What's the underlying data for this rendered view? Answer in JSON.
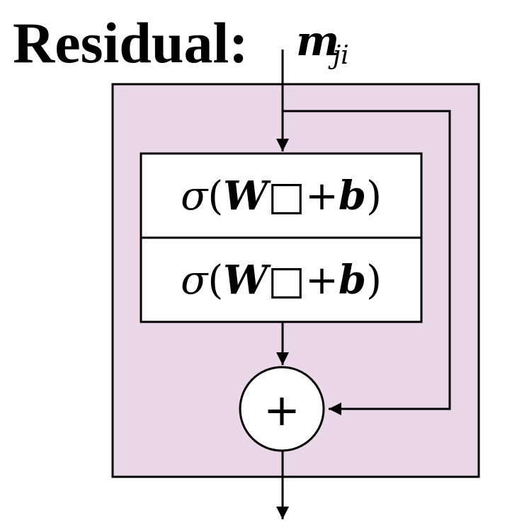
{
  "title": "Residual:",
  "input": {
    "symbol": "m",
    "subscript": "ji"
  },
  "layers": [
    {
      "activation": "σ",
      "open_paren": "(",
      "weight": "W",
      "placeholder": "□",
      "plus": "+",
      "bias": "b",
      "close_paren": ")"
    },
    {
      "activation": "σ",
      "open_paren": "(",
      "weight": "W",
      "placeholder": "□",
      "plus": "+",
      "bias": "b",
      "close_paren": ")"
    }
  ],
  "sum_node": {
    "symbol": "+"
  },
  "colors": {
    "block_fill": "#ead7ea",
    "stroke": "#000000",
    "layer_fill": "#ffffff"
  }
}
